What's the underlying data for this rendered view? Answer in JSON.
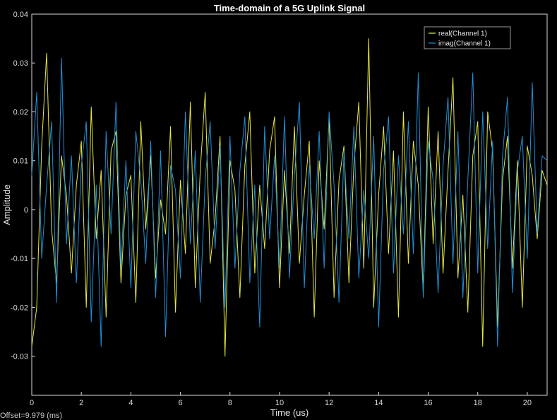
{
  "chart_data": {
    "type": "line",
    "title": "Time-domain of a 5G Uplink Signal",
    "xlabel": "Time (us)",
    "ylabel": "Amplitude",
    "offset_label": "Offset=9.979 (ms)",
    "xlim": [
      0,
      20.8
    ],
    "ylim": [
      -0.038,
      0.04
    ],
    "xticks": [
      0,
      2,
      4,
      6,
      8,
      10,
      12,
      14,
      16,
      18,
      20
    ],
    "yticks": [
      -0.03,
      -0.02,
      -0.01,
      0,
      0.01,
      0.02,
      0.03,
      0.04
    ],
    "ytick_labels": [
      "-0.03",
      "-0.02",
      "-0.01",
      "0",
      "0.01",
      "0.02",
      "0.03",
      "0.04"
    ],
    "grid": true,
    "legend_position": "top-right",
    "colors": {
      "background": "#000000",
      "grid": "#3a3a3a",
      "axis": "#d9d9d9"
    },
    "series": [
      {
        "name": "real(Channel 1)",
        "color": "#e8e83a",
        "x": [
          0,
          0.2,
          0.4,
          0.6,
          0.8,
          1,
          1.2,
          1.4,
          1.6,
          1.8,
          2,
          2.2,
          2.4,
          2.6,
          2.8,
          3,
          3.2,
          3.4,
          3.6,
          3.8,
          4,
          4.2,
          4.4,
          4.6,
          4.8,
          5,
          5.2,
          5.4,
          5.6,
          5.8,
          6,
          6.2,
          6.4,
          6.6,
          6.8,
          7,
          7.2,
          7.4,
          7.6,
          7.8,
          8,
          8.2,
          8.4,
          8.6,
          8.8,
          9,
          9.2,
          9.4,
          9.6,
          9.8,
          10,
          10.2,
          10.4,
          10.6,
          10.8,
          11,
          11.2,
          11.4,
          11.6,
          11.8,
          12,
          12.2,
          12.4,
          12.6,
          12.8,
          13,
          13.2,
          13.4,
          13.6,
          13.8,
          14,
          14.2,
          14.4,
          14.6,
          14.8,
          15,
          15.2,
          15.4,
          15.6,
          15.8,
          16,
          16.2,
          16.4,
          16.6,
          16.8,
          17,
          17.2,
          17.4,
          17.6,
          17.8,
          18,
          18.2,
          18.4,
          18.6,
          18.8,
          19,
          19.2,
          19.4,
          19.6,
          19.8,
          20,
          20.2,
          20.4,
          20.6,
          20.8
        ],
        "values": [
          -0.028,
          -0.02,
          0.013,
          0.032,
          -0.004,
          -0.015,
          0.011,
          0.003,
          -0.013,
          0.005,
          0.014,
          -0.02,
          0.021,
          -0.006,
          0.008,
          -0.022,
          0.012,
          0.016,
          -0.015,
          0.003,
          0.007,
          -0.019,
          0.018,
          -0.004,
          0.011,
          -0.014,
          0.002,
          -0.005,
          0.017,
          -0.021,
          0.006,
          -0.009,
          0.022,
          -0.016,
          0.008,
          0.024,
          -0.011,
          -0.002,
          0.015,
          -0.03,
          0.01,
          0.004,
          -0.018,
          0.009,
          0.02,
          -0.013,
          0.005,
          -0.008,
          0.012,
          0.019,
          -0.016,
          0.008,
          -0.009,
          0.017,
          -0.011,
          0.003,
          0.014,
          -0.022,
          0.01,
          -0.004,
          0.019,
          -0.018,
          0.006,
          0.013,
          -0.015,
          0.009,
          0.022,
          -0.012,
          0.035,
          -0.02,
          0.003,
          0.017,
          -0.009,
          0.012,
          -0.022,
          0.02,
          -0.011,
          0.014,
          0.005,
          -0.017,
          0.021,
          -0.007,
          0.016,
          -0.013,
          0.008,
          0.027,
          -0.014,
          0.003,
          -0.021,
          0.011,
          0.018,
          -0.028,
          0.02,
          0.012,
          -0.024,
          0.006,
          0.015,
          -0.012,
          0.01,
          -0.02,
          0.013,
          0.007,
          -0.006,
          0.008,
          0.005
        ]
      },
      {
        "name": "imag(Channel 1)",
        "color": "#1f8fd6",
        "x": [
          0,
          0.2,
          0.4,
          0.6,
          0.8,
          1,
          1.2,
          1.4,
          1.6,
          1.8,
          2,
          2.2,
          2.4,
          2.6,
          2.8,
          3,
          3.2,
          3.4,
          3.6,
          3.8,
          4,
          4.2,
          4.4,
          4.6,
          4.8,
          5,
          5.2,
          5.4,
          5.6,
          5.8,
          6,
          6.2,
          6.4,
          6.6,
          6.8,
          7,
          7.2,
          7.4,
          7.6,
          7.8,
          8,
          8.2,
          8.4,
          8.6,
          8.8,
          9,
          9.2,
          9.4,
          9.6,
          9.8,
          10,
          10.2,
          10.4,
          10.6,
          10.8,
          11,
          11.2,
          11.4,
          11.6,
          11.8,
          12,
          12.2,
          12.4,
          12.6,
          12.8,
          13,
          13.2,
          13.4,
          13.6,
          13.8,
          14,
          14.2,
          14.4,
          14.6,
          14.8,
          15,
          15.2,
          15.4,
          15.6,
          15.8,
          16,
          16.2,
          16.4,
          16.6,
          16.8,
          17,
          17.2,
          17.4,
          17.6,
          17.8,
          18,
          18.2,
          18.4,
          18.6,
          18.8,
          19,
          19.2,
          19.4,
          19.6,
          19.8,
          20,
          20.2,
          20.4,
          20.6,
          20.8
        ],
        "values": [
          0.007,
          0.024,
          -0.01,
          0.005,
          0.018,
          -0.019,
          0.031,
          -0.007,
          0.011,
          -0.015,
          0.009,
          0.018,
          -0.023,
          0.005,
          -0.028,
          0.016,
          -0.005,
          0.022,
          -0.012,
          0.01,
          -0.016,
          0.016,
          0.006,
          -0.011,
          0.014,
          -0.018,
          0.012,
          -0.026,
          0.009,
          0.004,
          -0.014,
          0.02,
          -0.007,
          0.012,
          -0.019,
          0.006,
          0.018,
          -0.008,
          0.013,
          -0.02,
          0.015,
          -0.012,
          0.008,
          0.019,
          -0.015,
          0.005,
          -0.024,
          0.017,
          -0.006,
          0.011,
          -0.012,
          0.019,
          -0.014,
          0.007,
          0.022,
          -0.016,
          0.009,
          -0.006,
          0.016,
          -0.012,
          0.02,
          0.005,
          -0.019,
          0.012,
          -0.006,
          0.017,
          -0.014,
          0.004,
          -0.01,
          0.015,
          -0.024,
          0.008,
          0.019,
          -0.013,
          0.011,
          -0.005,
          0.018,
          -0.009,
          0.028,
          -0.018,
          0.014,
          0.006,
          -0.017,
          0.009,
          0.023,
          -0.011,
          0.016,
          -0.018,
          0.006,
          0.028,
          -0.013,
          0.02,
          -0.008,
          0.014,
          -0.028,
          0.011,
          0.023,
          -0.017,
          0.008,
          0.015,
          -0.01,
          0.026,
          -0.005,
          0.011,
          0.01
        ]
      }
    ]
  }
}
